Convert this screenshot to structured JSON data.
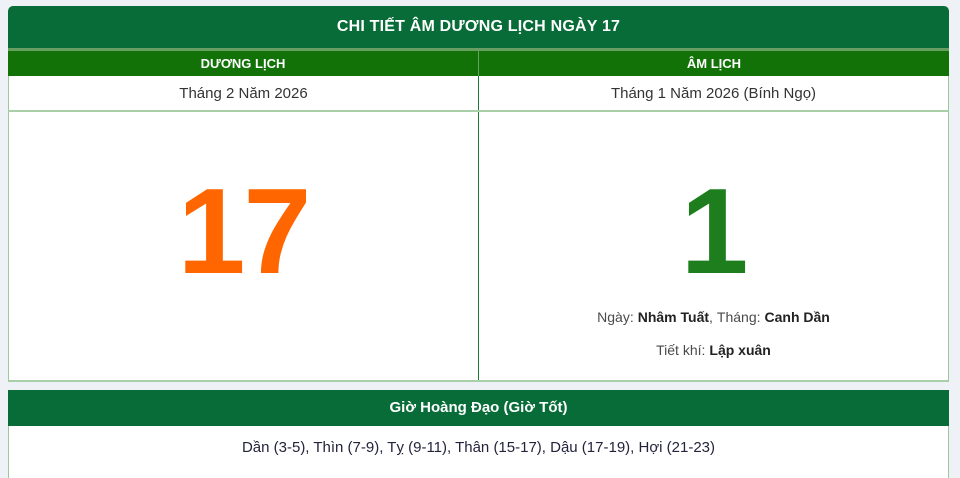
{
  "page": {
    "title": "CHI TIẾT ÂM DƯƠNG LỊCH NGÀY 17"
  },
  "solar": {
    "header": "DƯƠNG LỊCH",
    "month_year": "Tháng 2 Năm 2026",
    "day": "17"
  },
  "lunar": {
    "header": "ÂM LỊCH",
    "month_year": "Tháng 1 Năm 2026 (Bính Ngọ)",
    "day": "1",
    "canchi": {
      "day_label": "Ngày:",
      "day_value": "Nhâm Tuất",
      "separator": ",",
      "month_label": "Tháng:",
      "month_value": "Canh Dần"
    },
    "tietkhi": {
      "label": "Tiết khí:",
      "value": "Lập xuân"
    }
  },
  "hoang_dao": {
    "header": "Giờ Hoàng Đạo (Giờ Tốt)",
    "hours": "Dần (3-5), Thìn (7-9), Tỵ (9-11), Thân (15-17), Dậu (17-19), Hợi (21-23)"
  },
  "colors": {
    "header_green": "#076c38",
    "column_header_green": "#127207",
    "solar_day_orange": "#ff6600",
    "lunar_day_green": "#1e7e1e",
    "page_background": "#eef2f6",
    "divider_green": "#157a36",
    "light_border_green": "#9dc89d"
  }
}
